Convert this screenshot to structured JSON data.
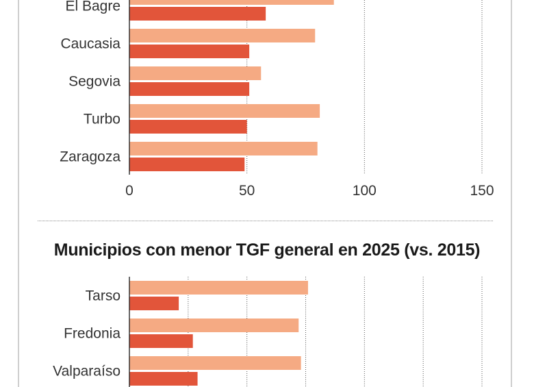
{
  "colors": {
    "bar_2015": "#f5aa83",
    "bar_2025": "#e2553a",
    "grid": "#555555",
    "axis": "#333333",
    "label": "#333333"
  },
  "chart_data": [
    {
      "type": "bar",
      "orientation": "horizontal",
      "title": "",
      "categories": [
        "El Bagre",
        "Caucasia",
        "Segovia",
        "Turbo",
        "Zaragoza"
      ],
      "series": [
        {
          "values": [
            87,
            79,
            56,
            81,
            80
          ]
        },
        {
          "values": [
            58,
            51,
            51,
            50,
            49
          ]
        }
      ],
      "xlim": [
        0,
        150
      ],
      "xticks": [
        0,
        50,
        100,
        150
      ],
      "grid": true
    },
    {
      "type": "bar",
      "orientation": "horizontal",
      "title": "Municipios con menor TGF general en 2025 (vs. 2015)",
      "categories": [
        "Tarso",
        "Fredonia",
        "Valparaíso"
      ],
      "series": [
        {
          "values": [
            76,
            72,
            73
          ]
        },
        {
          "values": [
            21,
            27,
            29
          ]
        }
      ],
      "xlim": [
        0,
        150
      ],
      "xticks": [
        0,
        25,
        50,
        75,
        100,
        125,
        150
      ],
      "grid": true
    }
  ]
}
